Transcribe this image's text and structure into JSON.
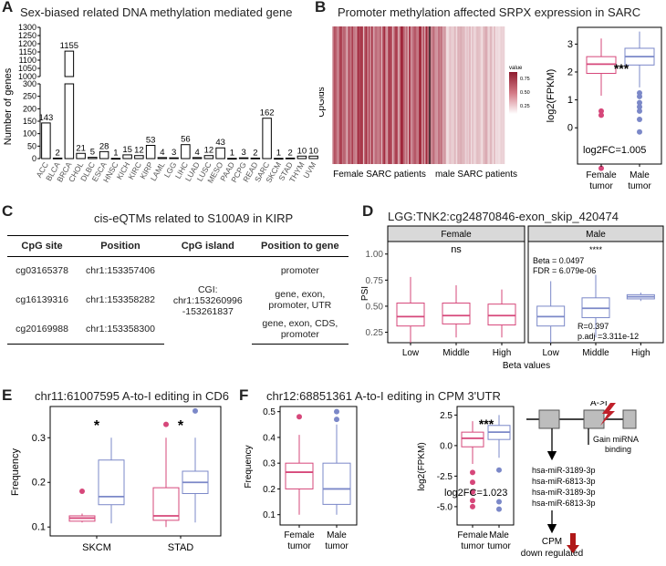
{
  "panels": {
    "A": {
      "label": "A",
      "title": "Sex-biased related DNA methylation mediated gene"
    },
    "B": {
      "label": "B",
      "title": "Promoter methylation affected SRPX expression in SARC"
    },
    "C": {
      "label": "C",
      "title": "cis-eQTMs related to S100A9 in KIRP"
    },
    "D": {
      "label": "D",
      "title": "LGG:TNK2:cg24870846-exon_skip_420474"
    },
    "E": {
      "label": "E",
      "title": "chr11:61007595 A-to-I editing in CD6"
    },
    "F": {
      "label": "F",
      "title": "chr12:68851361 A-to-I editing in CPM 3'UTR"
    }
  },
  "colors": {
    "female": "#d6477a",
    "male": "#7b88c8",
    "heat": "#9b1b30",
    "arrow": "#b01818"
  },
  "chart_data": [
    {
      "id": "A",
      "type": "bar",
      "title": "Sex-biased related DNA methylation mediated gene",
      "ylabel": "Number of genes",
      "xlabel": "",
      "axis_break": [
        300,
        1000
      ],
      "yticks_lower": [
        0,
        50,
        100,
        150,
        200,
        250,
        300
      ],
      "yticks_upper": [
        1000,
        1050,
        1100,
        1150,
        1200,
        1250,
        1300
      ],
      "categories": [
        "ACC",
        "BLCA",
        "BRCA",
        "CHOL",
        "DLBC",
        "ESCA",
        "HNSC",
        "KICH",
        "KIRC",
        "KIRP",
        "LAML",
        "LGG",
        "LIHC",
        "LUAD",
        "LUSC",
        "MESO",
        "PAAD",
        "PCPG",
        "READ",
        "SARC",
        "SKCM",
        "STAD",
        "THYM",
        "UVM"
      ],
      "values": [
        143,
        2,
        1155,
        21,
        5,
        28,
        1,
        15,
        12,
        53,
        4,
        3,
        56,
        4,
        12,
        43,
        1,
        3,
        2,
        162,
        1,
        2,
        10,
        10
      ],
      "value_labels": [
        "143",
        "2",
        "1155",
        "21",
        "5",
        "28",
        "1",
        "15",
        "12",
        "53",
        "4",
        "3",
        "56",
        "4",
        "12",
        "43",
        "1",
        "3",
        "2",
        "162",
        "1",
        "2",
        "10",
        "10"
      ]
    },
    {
      "id": "B-heatmap",
      "type": "heatmap",
      "ylabel": "CpGids",
      "groups": [
        "Female SARC patients",
        "male SARC patients"
      ],
      "legend_title": "value",
      "legend_ticks": [
        "0.75",
        "0.50",
        "0.25"
      ]
    },
    {
      "id": "B-box",
      "type": "box",
      "ylabel": "log2(FPKM)",
      "yticks": [
        0,
        1,
        2,
        3
      ],
      "ylim": [
        -1.3,
        3.6
      ],
      "categories": [
        "Female tumor",
        "Male tumor"
      ],
      "boxes": [
        {
          "name": "Female tumor",
          "min": 1.15,
          "q1": 1.95,
          "median": 2.28,
          "q3": 2.55,
          "max": 3.2,
          "outliers": [
            0.6,
            0.45,
            -1.45
          ]
        },
        {
          "name": "Male tumor",
          "min": 1.45,
          "q1": 2.25,
          "median": 2.55,
          "q3": 2.85,
          "max": 3.45,
          "outliers": [
            1.25,
            1.12,
            0.9,
            0.75,
            0.6,
            0.3,
            -0.15
          ]
        }
      ],
      "significance": "***",
      "annotation": "log2FC=1.005"
    },
    {
      "id": "D",
      "type": "box",
      "title": "LGG:TNK2:cg24870846-exon_skip_420474",
      "ylabel": "PSI",
      "xlabel": "Beta values",
      "yticks": [
        "0.25",
        "0.50",
        "0.75",
        "1.00"
      ],
      "ylim": [
        0.15,
        1.12
      ],
      "facets": [
        {
          "name": "Female",
          "significance": "ns",
          "boxes": [
            {
              "name": "Low",
              "min": 0.15,
              "q1": 0.31,
              "median": 0.4,
              "q3": 0.53,
              "max": 0.78
            },
            {
              "name": "Middle",
              "min": 0.2,
              "q1": 0.33,
              "median": 0.41,
              "q3": 0.53,
              "max": 0.7
            },
            {
              "name": "High",
              "min": 0.2,
              "q1": 0.32,
              "median": 0.41,
              "q3": 0.52,
              "max": 0.66
            }
          ]
        },
        {
          "name": "Male",
          "significance": "****",
          "annotations": [
            "Beta = 0.0497",
            "FDR = 6.079e-06",
            "R=0.397",
            "p.adj =3.311e-12"
          ],
          "boxes": [
            {
              "name": "Low",
              "min": 0.15,
              "q1": 0.31,
              "median": 0.4,
              "q3": 0.5,
              "max": 0.74
            },
            {
              "name": "Middle",
              "min": 0.2,
              "q1": 0.39,
              "median": 0.48,
              "q3": 0.58,
              "max": 0.8
            },
            {
              "name": "High",
              "min": 0.55,
              "q1": 0.57,
              "median": 0.59,
              "q3": 0.61,
              "max": 0.63
            }
          ]
        }
      ]
    },
    {
      "id": "E",
      "type": "box",
      "title": "chr11:61007595 A-to-I editing in CD6",
      "ylabel": "Frequency",
      "yticks": [
        "0.1",
        "0.2",
        "0.3"
      ],
      "ylim": [
        0.08,
        0.37
      ],
      "categories": [
        "SKCM",
        "STAD"
      ],
      "boxes": [
        {
          "group": "SKCM",
          "sex": "female",
          "min": 0.11,
          "q1": 0.113,
          "median": 0.12,
          "q3": 0.125,
          "max": 0.13,
          "outliers": [
            0.18
          ]
        },
        {
          "group": "SKCM",
          "sex": "male",
          "min": 0.108,
          "q1": 0.15,
          "median": 0.168,
          "q3": 0.25,
          "max": 0.3,
          "outliers": []
        },
        {
          "group": "STAD",
          "sex": "female",
          "min": 0.1,
          "q1": 0.115,
          "median": 0.125,
          "q3": 0.188,
          "max": 0.3,
          "outliers": [
            0.33
          ]
        },
        {
          "group": "STAD",
          "sex": "male",
          "min": 0.11,
          "q1": 0.175,
          "median": 0.2,
          "q3": 0.225,
          "max": 0.3,
          "outliers": [
            0.36
          ]
        }
      ],
      "significance": [
        "*",
        "*"
      ]
    },
    {
      "id": "F-freq",
      "type": "box",
      "ylabel": "Frequency",
      "yticks": [
        "0.1",
        "0.2",
        "0.3",
        "0.4",
        "0.5"
      ],
      "ylim": [
        0.06,
        0.52
      ],
      "categories": [
        "Female tumor",
        "Male tumor"
      ],
      "boxes": [
        {
          "name": "Female tumor",
          "min": 0.1,
          "q1": 0.2,
          "median": 0.265,
          "q3": 0.3,
          "max": 0.41,
          "outliers": [
            0.48
          ]
        },
        {
          "name": "Male tumor",
          "min": 0.1,
          "q1": 0.14,
          "median": 0.2,
          "q3": 0.3,
          "max": 0.45,
          "outliers": [
            0.47,
            0.5
          ]
        }
      ]
    },
    {
      "id": "F-expr",
      "type": "box",
      "ylabel": "log2(FPKM)",
      "yticks": [
        "-5.0",
        "-2.5",
        "0.0",
        "2.5"
      ],
      "ylim": [
        -6.5,
        3.2
      ],
      "categories": [
        "Female tumor",
        "Male tumor"
      ],
      "boxes": [
        {
          "name": "Female tumor",
          "min": -1.5,
          "q1": -0.1,
          "median": 0.6,
          "q3": 1.1,
          "max": 2.0,
          "outliers": [
            -2.2,
            -3.0,
            -3.8,
            -4.5,
            -5.0
          ]
        },
        {
          "name": "Male tumor",
          "min": -1.0,
          "q1": 0.5,
          "median": 1.1,
          "q3": 1.65,
          "max": 2.5,
          "outliers": [
            -2.0,
            -4.6,
            -5.2
          ]
        }
      ],
      "significance": "***",
      "annotation": "log2FC=1.023"
    }
  ],
  "table_C": {
    "headers": [
      "CpG site",
      "Position",
      "CpG island",
      "Position to gene"
    ],
    "rows": [
      {
        "cpg": "cg03165378",
        "position": "chr1:153357406",
        "gene_pos": [
          "promoter"
        ]
      },
      {
        "cpg": "cg16139316",
        "position": "chr1:153358282",
        "gene_pos": [
          "gene, exon,",
          "promoter, UTR"
        ]
      },
      {
        "cpg": "cg20169988",
        "position": "chr1:153358300",
        "gene_pos": [
          "gene, exon, CDS,",
          "promoter"
        ]
      }
    ],
    "island": [
      "CGI:",
      "chr1:153260996",
      "-153261837"
    ]
  },
  "diagram_F": {
    "editing_label": "A->I",
    "gain_label": [
      "Gain miRNA",
      "binding"
    ],
    "mirnas": [
      "hsa-miR-3189-3p",
      "hsa-miR-6813-3p",
      "hsa-miR-3189-3p",
      "hsa-miR-6813-3p"
    ],
    "result": [
      "CPM",
      "down regulated"
    ]
  }
}
